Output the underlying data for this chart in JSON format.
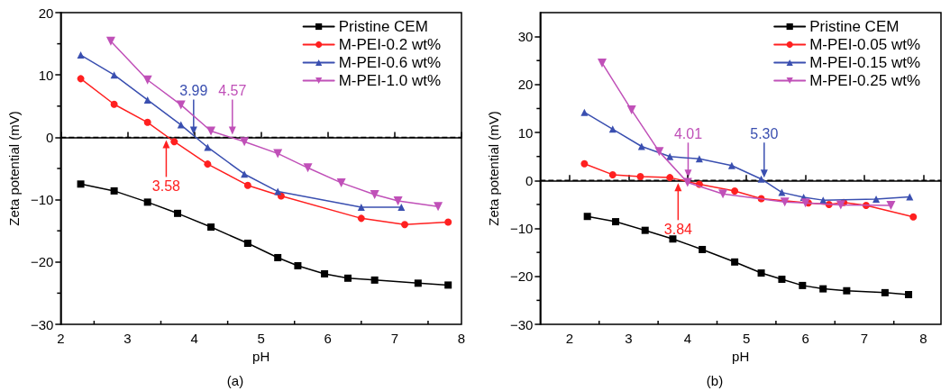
{
  "chart_data": [
    {
      "type": "line",
      "xlabel": "pH",
      "ylabel": "Zeta potential (mV)",
      "xlim": [
        2,
        8
      ],
      "xticks": [
        2,
        3,
        4,
        5,
        6,
        7,
        8
      ],
      "ylim": [
        -30,
        20
      ],
      "yticks": [
        -30,
        -20,
        -10,
        0,
        10,
        20
      ],
      "grid": false,
      "legend": "top right",
      "line_style": "solid",
      "series": [
        {
          "name": "Pristine CEM",
          "color": "#000000",
          "marker": "square",
          "x": [
            2.3,
            2.8,
            3.3,
            3.75,
            4.25,
            4.8,
            5.25,
            5.55,
            5.95,
            6.3,
            6.7,
            7.35,
            7.8
          ],
          "values": [
            -7.5,
            -8.6,
            -10.4,
            -12.2,
            -14.4,
            -17,
            -19.3,
            -20.6,
            -21.9,
            -22.6,
            -22.9,
            -23.4,
            -23.7
          ]
        },
        {
          "name": "M-PEI-0.2 wt%",
          "color": "#ff2020",
          "marker": "circle",
          "x": [
            2.3,
            2.8,
            3.3,
            3.7,
            4.2,
            4.8,
            5.3,
            6.5,
            7.15,
            7.8
          ],
          "values": [
            9.4,
            5.3,
            2.4,
            -0.7,
            -4.3,
            -7.7,
            -9.4,
            -13,
            -14,
            -13.6
          ]
        },
        {
          "name": "M-PEI-0.6 wt%",
          "color": "#3a4fb0",
          "marker": "triangle",
          "x": [
            2.3,
            2.8,
            3.3,
            3.8,
            4.2,
            4.75,
            5.25,
            6.5,
            7.1
          ],
          "values": [
            13.2,
            10,
            6,
            2,
            -1.6,
            -5.9,
            -8.7,
            -11.2,
            -11.2
          ]
        },
        {
          "name": "M-PEI-1.0 wt%",
          "color": "#c050b8",
          "marker": "triangle-down",
          "x": [
            2.75,
            3.3,
            3.8,
            4.25,
            4.75,
            5.25,
            5.7,
            6.2,
            6.7,
            7.05,
            7.65
          ],
          "values": [
            15.4,
            9.2,
            5.2,
            1,
            -0.7,
            -2.6,
            -4.9,
            -7.3,
            -9.2,
            -10.2,
            -11.1
          ]
        }
      ],
      "ref_lines": [
        {
          "axis": "y",
          "value": 0,
          "color": "#000000",
          "line_style": "dashed"
        }
      ],
      "annotations": [
        {
          "text": "3.58",
          "x": 3.58,
          "y": 0
        },
        {
          "text": "3.99",
          "x": 3.99,
          "y": 0
        },
        {
          "text": "4.57",
          "x": 4.57,
          "y": 0
        },
        "(a)"
      ]
    },
    {
      "type": "line",
      "xlabel": "pH",
      "ylabel": "Zeta potential (mV)",
      "xlim": [
        1.5,
        8.3
      ],
      "xticks": [
        2,
        3,
        4,
        5,
        6,
        7,
        8
      ],
      "ylim": [
        -30,
        35
      ],
      "yticks": [
        -30,
        -20,
        -10,
        0,
        10,
        20,
        30
      ],
      "grid": false,
      "legend": "top right",
      "line_style": "solid",
      "series": [
        {
          "name": "Pristine CEM",
          "color": "#000000",
          "marker": "square",
          "x": [
            2.3,
            2.78,
            3.28,
            3.75,
            4.25,
            4.8,
            5.25,
            5.6,
            5.95,
            6.3,
            6.7,
            7.35,
            7.75
          ],
          "values": [
            -7.5,
            -8.6,
            -10.4,
            -12.2,
            -14.4,
            -17,
            -19.3,
            -20.6,
            -21.9,
            -22.6,
            -23,
            -23.4,
            -23.8
          ]
        },
        {
          "name": "M-PEI-0.05 wt%",
          "color": "#ff2020",
          "marker": "circle",
          "x": [
            2.25,
            2.73,
            3.2,
            3.7,
            4.2,
            4.8,
            5.25,
            6.05,
            6.4,
            6.65,
            7.03,
            7.83
          ],
          "values": [
            3.5,
            1.2,
            0.8,
            0.6,
            -0.8,
            -2.2,
            -3.8,
            -4.7,
            -5,
            -4.6,
            -5.2,
            -7.6
          ]
        },
        {
          "name": "M-PEI-0.15 wt%",
          "color": "#3a4fb0",
          "marker": "triangle",
          "x": [
            2.25,
            2.73,
            3.22,
            3.7,
            4.2,
            4.75,
            5.25,
            5.6,
            5.97,
            6.3,
            7.2,
            7.77
          ],
          "values": [
            14.2,
            10.7,
            7.1,
            5,
            4.5,
            3.1,
            0.3,
            -2.5,
            -3.5,
            -4.1,
            -3.9,
            -3.4
          ]
        },
        {
          "name": "M-PEI-0.25 wt%",
          "color": "#c050b8",
          "marker": "triangle-down",
          "x": [
            2.55,
            3.05,
            3.52,
            4.0,
            4.6,
            5.65,
            6.0,
            6.6,
            7.45
          ],
          "values": [
            24.5,
            14.7,
            6,
            -0.4,
            -2.8,
            -4.5,
            -4.7,
            -5.1,
            -5.2
          ]
        }
      ],
      "ref_lines": [
        {
          "axis": "y",
          "value": 0,
          "color": "#000000",
          "line_style": "dashed"
        }
      ],
      "annotations": [
        {
          "text": "4.01",
          "x": 4.01,
          "y": 0
        },
        {
          "text": "5.30",
          "x": 5.3,
          "y": 0
        },
        {
          "text": "3.84",
          "x": 3.84,
          "y": 0
        },
        "(b)"
      ]
    }
  ]
}
